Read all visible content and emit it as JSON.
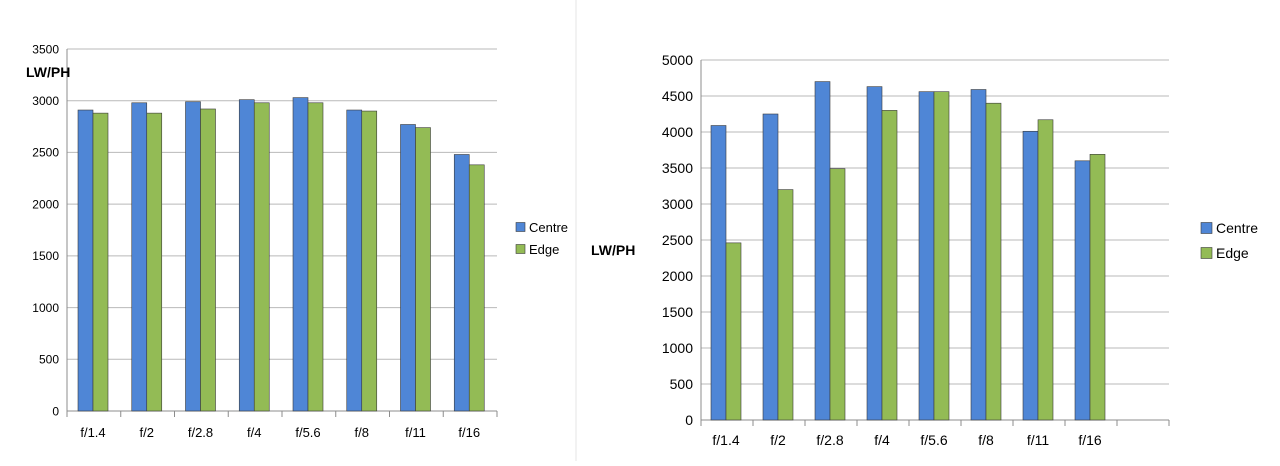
{
  "colors": {
    "centre": "#4f86d6",
    "edge": "#93bb55",
    "grid": "#b9b9b9",
    "axis": "#8c8c8c"
  },
  "chart_data": [
    {
      "type": "bar",
      "title": "",
      "xlabel": "",
      "ylabel": "LW/PH",
      "categories": [
        "f/1.4",
        "f/2",
        "f/2.8",
        "f/4",
        "f/5.6",
        "f/8",
        "f/11",
        "f/16"
      ],
      "series": [
        {
          "name": "Centre",
          "values": [
            2910,
            2980,
            2990,
            3010,
            3030,
            2910,
            2770,
            2480
          ]
        },
        {
          "name": "Edge",
          "values": [
            2880,
            2880,
            2920,
            2980,
            2980,
            2900,
            2740,
            2380
          ]
        }
      ],
      "ylim": [
        0,
        3500
      ],
      "yticks": [
        0,
        500,
        1000,
        1500,
        2000,
        2500,
        3000,
        3500
      ],
      "grid": true,
      "legend": "right"
    },
    {
      "type": "bar",
      "title": "",
      "xlabel": "",
      "ylabel": "LW/PH",
      "categories": [
        "f/1.4",
        "f/2",
        "f/2.8",
        "f/4",
        "f/5.6",
        "f/8",
        "f/11",
        "f/16"
      ],
      "series": [
        {
          "name": "Centre",
          "values": [
            4090,
            4250,
            4700,
            4630,
            4560,
            4590,
            4010,
            3600
          ]
        },
        {
          "name": "Edge",
          "values": [
            2460,
            3200,
            3490,
            4300,
            4560,
            4400,
            4170,
            3690
          ]
        }
      ],
      "ylim": [
        0,
        5000
      ],
      "yticks": [
        0,
        500,
        1000,
        1500,
        2000,
        2500,
        3000,
        3500,
        4000,
        4500,
        5000
      ],
      "grid": true,
      "legend": "right"
    }
  ]
}
